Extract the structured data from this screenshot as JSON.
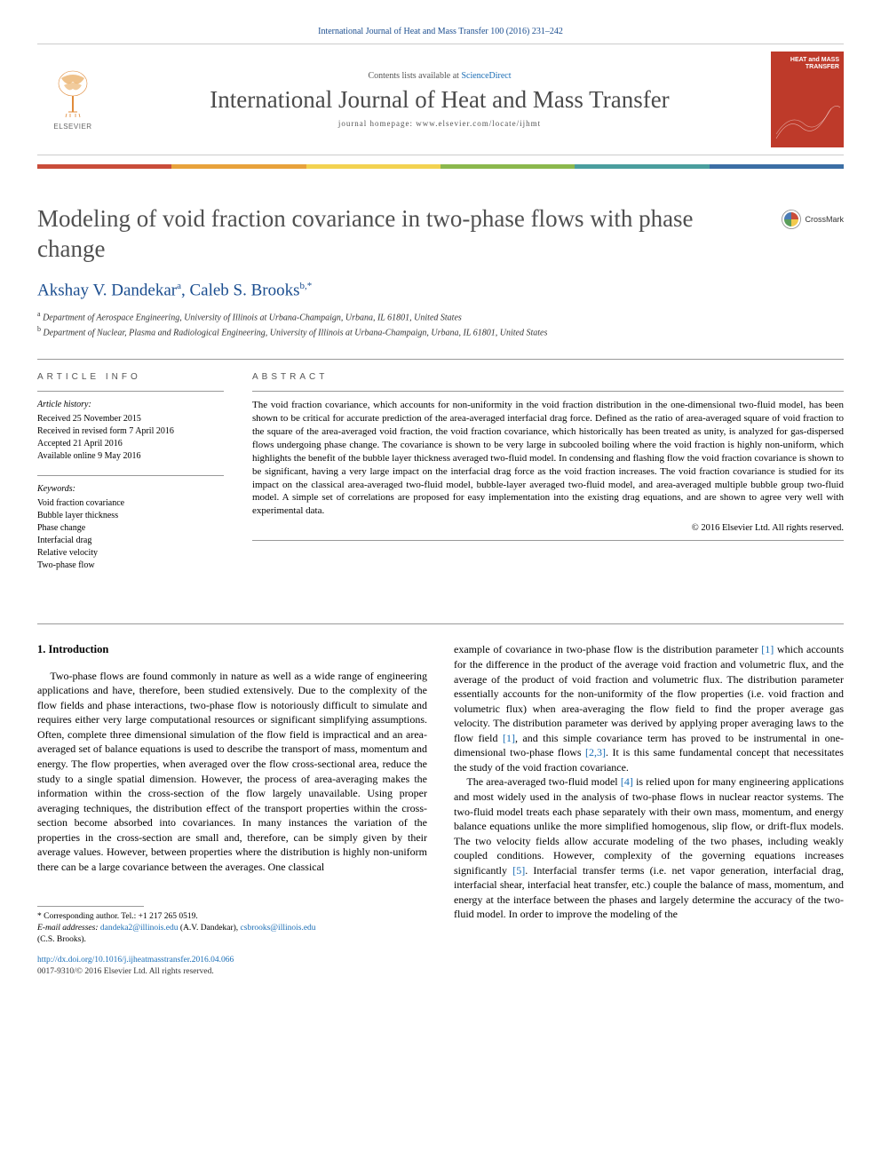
{
  "header": {
    "citation": "International Journal of Heat and Mass Transfer 100 (2016) 231–242",
    "contents_prefix": "Contents lists available at ",
    "contents_link": "ScienceDirect",
    "journal_name": "International Journal of Heat and Mass Transfer",
    "homepage_prefix": "journal homepage: ",
    "homepage_url": "www.elsevier.com/locate/ijhmt",
    "publisher_label": "ELSEVIER",
    "cover_title": "HEAT and MASS TRANSFER"
  },
  "colorbar": [
    "#c94d3a",
    "#e8a23b",
    "#f2d250",
    "#8bb84d",
    "#4a9e9e",
    "#3b6ea5"
  ],
  "article": {
    "title": "Modeling of void fraction covariance in two-phase flows with phase change",
    "crossmark_label": "CrossMark",
    "authors_html": "Akshay V. Dandekar",
    "author1": "Akshay V. Dandekar",
    "author1_sup": "a",
    "author2": "Caleb S. Brooks",
    "author2_sup": "b,*",
    "affiliations": [
      {
        "sup": "a",
        "text": "Department of Aerospace Engineering, University of Illinois at Urbana-Champaign, Urbana, IL 61801, United States"
      },
      {
        "sup": "b",
        "text": "Department of Nuclear, Plasma and Radiological Engineering, University of Illinois at Urbana-Champaign, Urbana, IL 61801, United States"
      }
    ]
  },
  "info": {
    "section_label": "ARTICLE INFO",
    "history_label": "Article history:",
    "history": [
      "Received 25 November 2015",
      "Received in revised form 7 April 2016",
      "Accepted 21 April 2016",
      "Available online 9 May 2016"
    ],
    "keywords_label": "Keywords:",
    "keywords": [
      "Void fraction covariance",
      "Bubble layer thickness",
      "Phase change",
      "Interfacial drag",
      "Relative velocity",
      "Two-phase flow"
    ]
  },
  "abstract": {
    "section_label": "ABSTRACT",
    "text": "The void fraction covariance, which accounts for non-uniformity in the void fraction distribution in the one-dimensional two-fluid model, has been shown to be critical for accurate prediction of the area-averaged interfacial drag force. Defined as the ratio of area-averaged square of void fraction to the square of the area-averaged void fraction, the void fraction covariance, which historically has been treated as unity, is analyzed for gas-dispersed flows undergoing phase change. The covariance is shown to be very large in subcooled boiling where the void fraction is highly non-uniform, which highlights the benefit of the bubble layer thickness averaged two-fluid model. In condensing and flashing flow the void fraction covariance is shown to be significant, having a very large impact on the interfacial drag force as the void fraction increases. The void fraction covariance is studied for its impact on the classical area-averaged two-fluid model, bubble-layer averaged two-fluid model, and area-averaged multiple bubble group two-fluid model. A simple set of correlations are proposed for easy implementation into the existing drag equations, and are shown to agree very well with experimental data.",
    "copyright": "© 2016 Elsevier Ltd. All rights reserved."
  },
  "body": {
    "section_heading": "1. Introduction",
    "col1_p1": "Two-phase flows are found commonly in nature as well as a wide range of engineering applications and have, therefore, been studied extensively. Due to the complexity of the flow fields and phase interactions, two-phase flow is notoriously difficult to simulate and requires either very large computational resources or significant simplifying assumptions. Often, complete three dimensional simulation of the flow field is impractical and an area-averaged set of balance equations is used to describe the transport of mass, momentum and energy. The flow properties, when averaged over the flow cross-sectional area, reduce the study to a single spatial dimension. However, the process of area-averaging makes the information within the cross-section of the flow largely unavailable. Using proper averaging techniques, the distribution effect of the transport properties within the cross-section become absorbed into covariances. In many instances the variation of the properties in the cross-section are small and, therefore, can be simply given by their average values. However, between properties where the distribution is highly non-uniform there can be a large covariance between the averages. One classical",
    "col2_p1_pre": "example of covariance in two-phase flow is the distribution parameter ",
    "col2_p1_ref1": "[1]",
    "col2_p1_mid": " which accounts for the difference in the product of the average void fraction and volumetric flux, and the average of the product of void fraction and volumetric flux. The distribution parameter essentially accounts for the non-uniformity of the flow properties (i.e. void fraction and volumetric flux) when area-averaging the flow field to find the proper average gas velocity. The distribution parameter was derived by applying proper averaging laws to the flow field ",
    "col2_p1_ref2": "[1]",
    "col2_p1_mid2": ", and this simple covariance term has proved to be instrumental in one-dimensional two-phase flows ",
    "col2_p1_ref3": "[2,3]",
    "col2_p1_end": ". It is this same fundamental concept that necessitates the study of the void fraction covariance.",
    "col2_p2_pre": "The area-averaged two-fluid model ",
    "col2_p2_ref1": "[4]",
    "col2_p2_mid": " is relied upon for many engineering applications and most widely used in the analysis of two-phase flows in nuclear reactor systems. The two-fluid model treats each phase separately with their own mass, momentum, and energy balance equations unlike the more simplified homogenous, slip flow, or drift-flux models. The two velocity fields allow accurate modeling of the two phases, including weakly coupled conditions. However, complexity of the governing equations increases significantly ",
    "col2_p2_ref2": "[5]",
    "col2_p2_end": ". Interfacial transfer terms (i.e. net vapor generation, interfacial drag, interfacial shear, interfacial heat transfer, etc.) couple the balance of mass, momentum, and energy at the interface between the phases and largely determine the accuracy of the two-fluid model. In order to improve the modeling of the"
  },
  "footnotes": {
    "corr": "* Corresponding author. Tel.: +1 217 265 0519.",
    "email_label": "E-mail addresses: ",
    "email1": "dandeka2@illinois.edu",
    "email1_who": " (A.V. Dandekar), ",
    "email2": "csbrooks@illinois.edu",
    "email2_who": " (C.S. Brooks).",
    "doi": "http://dx.doi.org/10.1016/j.ijheatmasstransfer.2016.04.066",
    "issn": "0017-9310/© 2016 Elsevier Ltd. All rights reserved."
  },
  "styles": {
    "link_color": "#1a6db5",
    "author_color": "#1a4d8f",
    "cover_bg": "#be3a2a",
    "body_font_size": 12,
    "abstract_font_size": 11
  }
}
